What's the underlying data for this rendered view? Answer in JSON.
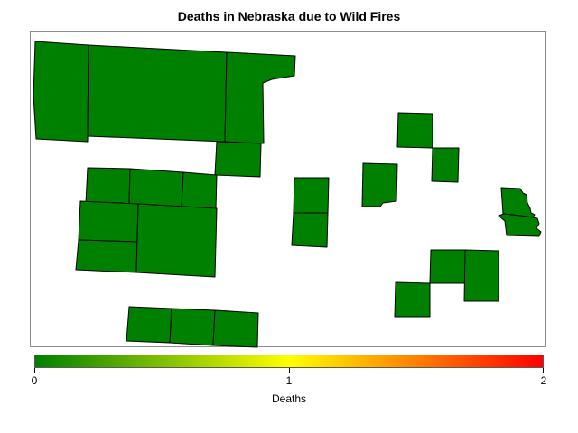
{
  "title": "Deaths in Nebraska due to Wild Fires",
  "map": {
    "region": "Nebraska",
    "fill_color": "#008000",
    "all_shown_counties_value": 0
  },
  "legend": {
    "title": "Deaths",
    "min": 0,
    "mid": 1,
    "max": 2,
    "tick_labels": [
      "0",
      "1",
      "2"
    ],
    "colors": [
      "#008000",
      "#ffff00",
      "#ff0000"
    ]
  }
}
